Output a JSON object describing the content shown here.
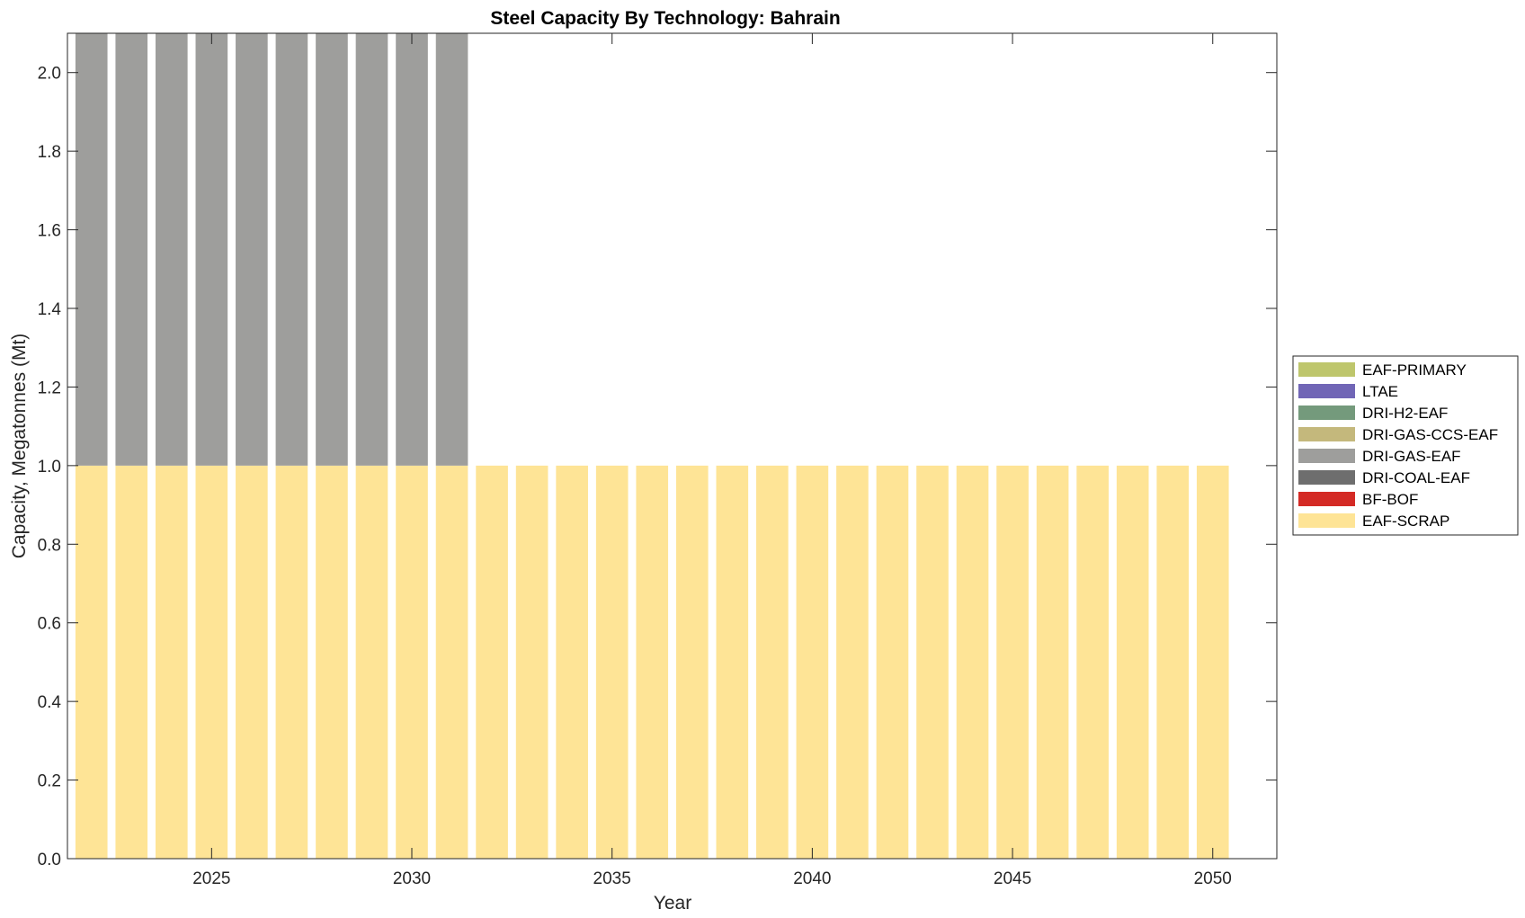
{
  "chart_data": {
    "type": "bar",
    "stacked": true,
    "title": "Steel Capacity By Technology: Bahrain",
    "xlabel": "Year",
    "ylabel": "Capacity, Megatonnes (Mt)",
    "ylim": [
      0,
      2.1
    ],
    "xlim": [
      2021.4,
      2051.6
    ],
    "yticks": [
      0.0,
      0.2,
      0.4,
      0.6,
      0.8,
      1.0,
      1.2,
      1.4,
      1.6,
      1.8,
      2.0
    ],
    "ytick_labels": [
      "0.0",
      "0.2",
      "0.4",
      "0.6",
      "0.8",
      "1.0",
      "1.2",
      "1.4",
      "1.6",
      "1.8",
      "2.0"
    ],
    "xticks": [
      2025,
      2030,
      2035,
      2040,
      2045,
      2050
    ],
    "xtick_labels": [
      "2025",
      "2030",
      "2035",
      "2040",
      "2045",
      "2050"
    ],
    "categories": [
      2022,
      2023,
      2024,
      2025,
      2026,
      2027,
      2028,
      2029,
      2030,
      2031,
      2032,
      2033,
      2034,
      2035,
      2036,
      2037,
      2038,
      2039,
      2040,
      2041,
      2042,
      2043,
      2044,
      2045,
      2046,
      2047,
      2048,
      2049,
      2050
    ],
    "legend_position": "right",
    "legend": [
      "EAF-PRIMARY",
      "LTAE",
      "DRI-H2-EAF",
      "DRI-GAS-CCS-EAF",
      "DRI-GAS-EAF",
      "DRI-COAL-EAF",
      "BF-BOF",
      "EAF-SCRAP"
    ],
    "series": [
      {
        "name": "EAF-SCRAP",
        "color": "#fee496",
        "values": [
          1,
          1,
          1,
          1,
          1,
          1,
          1,
          1,
          1,
          1,
          1,
          1,
          1,
          1,
          1,
          1,
          1,
          1,
          1,
          1,
          1,
          1,
          1,
          1,
          1,
          1,
          1,
          1,
          1
        ]
      },
      {
        "name": "BF-BOF",
        "color": "#d42a25",
        "values": [
          0,
          0,
          0,
          0,
          0,
          0,
          0,
          0,
          0,
          0,
          0,
          0,
          0,
          0,
          0,
          0,
          0,
          0,
          0,
          0,
          0,
          0,
          0,
          0,
          0,
          0,
          0,
          0,
          0
        ]
      },
      {
        "name": "DRI-COAL-EAF",
        "color": "#6e6e6e",
        "values": [
          0,
          0,
          0,
          0,
          0,
          0,
          0,
          0,
          0,
          0,
          0,
          0,
          0,
          0,
          0,
          0,
          0,
          0,
          0,
          0,
          0,
          0,
          0,
          0,
          0,
          0,
          0,
          0,
          0
        ]
      },
      {
        "name": "DRI-GAS-EAF",
        "color": "#9e9e9c",
        "values": [
          1.1,
          1.1,
          1.1,
          1.1,
          1.1,
          1.1,
          1.1,
          1.1,
          1.1,
          1.1,
          0,
          0,
          0,
          0,
          0,
          0,
          0,
          0,
          0,
          0,
          0,
          0,
          0,
          0,
          0,
          0,
          0,
          0,
          0
        ]
      },
      {
        "name": "DRI-GAS-CCS-EAF",
        "color": "#c4b87c",
        "values": [
          0,
          0,
          0,
          0,
          0,
          0,
          0,
          0,
          0,
          0,
          0,
          0,
          0,
          0,
          0,
          0,
          0,
          0,
          0,
          0,
          0,
          0,
          0,
          0,
          0,
          0,
          0,
          0,
          0
        ]
      },
      {
        "name": "DRI-H2-EAF",
        "color": "#749a7c",
        "values": [
          0,
          0,
          0,
          0,
          0,
          0,
          0,
          0,
          0,
          0,
          0,
          0,
          0,
          0,
          0,
          0,
          0,
          0,
          0,
          0,
          0,
          0,
          0,
          0,
          0,
          0,
          0,
          0,
          0
        ]
      },
      {
        "name": "LTAE",
        "color": "#7166b6",
        "values": [
          0,
          0,
          0,
          0,
          0,
          0,
          0,
          0,
          0,
          0,
          0,
          0,
          0,
          0,
          0,
          0,
          0,
          0,
          0,
          0,
          0,
          0,
          0,
          0,
          0,
          0,
          0,
          0,
          0
        ]
      },
      {
        "name": "EAF-PRIMARY",
        "color": "#bec66c",
        "values": [
          0,
          0,
          0,
          0,
          0,
          0,
          0,
          0,
          0,
          0,
          0,
          0,
          0,
          0,
          0,
          0,
          0,
          0,
          0,
          0,
          0,
          0,
          0,
          0,
          0,
          0,
          0,
          0,
          0
        ]
      }
    ]
  }
}
